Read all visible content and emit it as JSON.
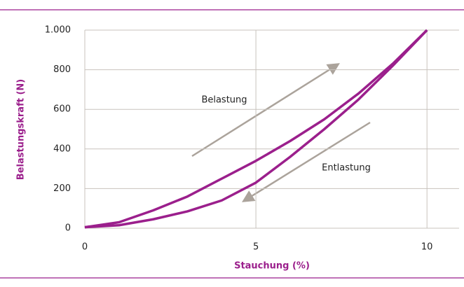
{
  "chart_data": {
    "type": "line",
    "x_label": "Stauchung (%)",
    "y_label": "Belastungskraft (N)",
    "xlim": [
      0,
      11
    ],
    "xticks": [
      0,
      5,
      10
    ],
    "ylim": [
      0,
      1000
    ],
    "yticks": [
      0,
      200,
      400,
      600,
      800,
      {
        "value": 1000,
        "label": "1.000"
      }
    ],
    "grid": true,
    "annotations": [
      "Belastung",
      "Entlastung"
    ],
    "series": [
      {
        "color": "#9b1f8c",
        "x": [
          0,
          1,
          2,
          3,
          4,
          5,
          6,
          7,
          8,
          9,
          10
        ],
        "values": [
          5,
          30,
          90,
          160,
          250,
          340,
          440,
          550,
          680,
          830,
          1000
        ]
      },
      {
        "color": "#9b1f8c",
        "x": [
          0,
          1,
          2,
          3,
          4,
          5,
          6,
          7,
          8,
          9,
          10
        ],
        "values": [
          5,
          15,
          45,
          85,
          140,
          230,
          360,
          500,
          650,
          820,
          1000
        ]
      }
    ]
  }
}
